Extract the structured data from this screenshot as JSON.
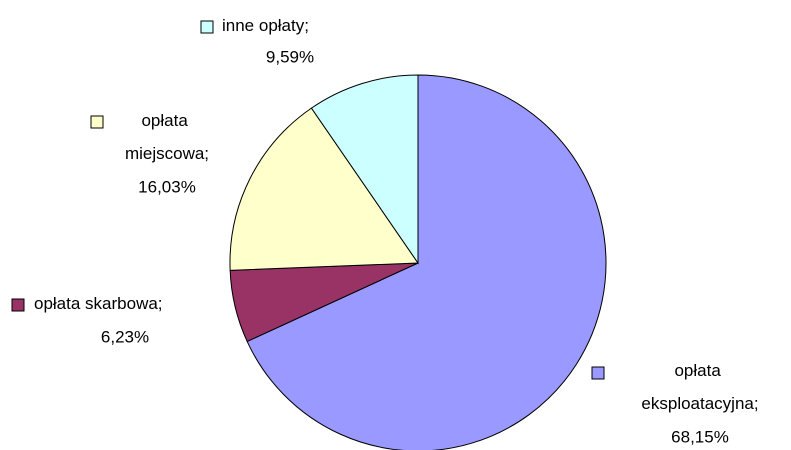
{
  "chart_data": {
    "type": "pie",
    "categories": [
      "opłata eksploatacyjna;",
      "opłata skarbowa;",
      "opłata miejscowa;",
      "inne opłaty;"
    ],
    "values": [
      68.15,
      6.23,
      16.03,
      9.59
    ],
    "value_labels": [
      "68,15%",
      "6,23%",
      "16,03%",
      "9,59%"
    ],
    "colors": [
      "#9999ff",
      "#993366",
      "#ffffcc",
      "#ccffff"
    ]
  }
}
